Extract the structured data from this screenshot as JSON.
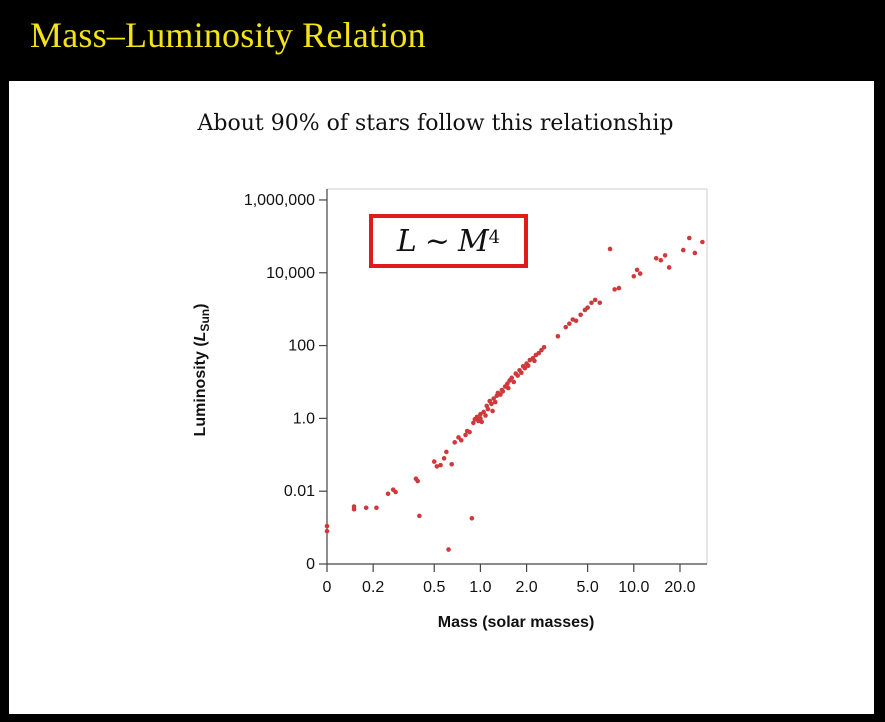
{
  "slide": {
    "title": "Mass–Luminosity Relation",
    "subtitle": "About 90% of stars follow this relationship",
    "formula": {
      "lhs": "L",
      "op": "~",
      "rhs": "M",
      "exp": "4"
    }
  },
  "chart_data": {
    "type": "scatter",
    "xlabel": "Mass (solar masses)",
    "ylabel_main": "Luminosity (",
    "ylabel_symbol": "L",
    "ylabel_sub": "Sun",
    "ylabel_end": ")",
    "xscale": "log",
    "yscale": "log",
    "xlim": [
      0.1,
      30
    ],
    "ylim": [
      0.0001,
      2000000
    ],
    "x_ticks": [
      {
        "value": 0.1,
        "label": "0"
      },
      {
        "value": 0.2,
        "label": "0.2"
      },
      {
        "value": 0.5,
        "label": "0.5"
      },
      {
        "value": 1.0,
        "label": "1.0"
      },
      {
        "value": 2.0,
        "label": "2.0"
      },
      {
        "value": 5.0,
        "label": "5.0"
      },
      {
        "value": 10.0,
        "label": "10.0"
      },
      {
        "value": 20.0,
        "label": "20.0"
      }
    ],
    "y_ticks": [
      {
        "value": 0.0001,
        "label": "0"
      },
      {
        "value": 0.01,
        "label": "0.01"
      },
      {
        "value": 1,
        "label": "1.0"
      },
      {
        "value": 100,
        "label": "100"
      },
      {
        "value": 10000,
        "label": "10,000"
      },
      {
        "value": 1000000,
        "label": "1,000,000"
      }
    ],
    "grid": false,
    "point_color": "#d0393b",
    "points": [
      [
        0.1,
        0.0008
      ],
      [
        0.1,
        0.0011
      ],
      [
        0.15,
        0.0032
      ],
      [
        0.15,
        0.0038
      ],
      [
        0.18,
        0.0035
      ],
      [
        0.21,
        0.0035
      ],
      [
        0.25,
        0.0085
      ],
      [
        0.27,
        0.011
      ],
      [
        0.28,
        0.0095
      ],
      [
        0.38,
        0.022
      ],
      [
        0.39,
        0.019
      ],
      [
        0.4,
        0.0021
      ],
      [
        0.5,
        0.065
      ],
      [
        0.52,
        0.048
      ],
      [
        0.55,
        0.052
      ],
      [
        0.58,
        0.08
      ],
      [
        0.6,
        0.12
      ],
      [
        0.62,
        0.00025
      ],
      [
        0.65,
        0.055
      ],
      [
        0.68,
        0.22
      ],
      [
        0.72,
        0.3
      ],
      [
        0.75,
        0.25
      ],
      [
        0.8,
        0.35
      ],
      [
        0.82,
        0.45
      ],
      [
        0.85,
        0.42
      ],
      [
        0.88,
        0.0018
      ],
      [
        0.9,
        0.75
      ],
      [
        0.92,
        0.95
      ],
      [
        0.95,
        1.1
      ],
      [
        0.97,
        0.85
      ],
      [
        1.0,
        1.0
      ],
      [
        1.0,
        1.3
      ],
      [
        1.02,
        0.8
      ],
      [
        1.05,
        1.5
      ],
      [
        1.08,
        1.2
      ],
      [
        1.1,
        2.2
      ],
      [
        1.12,
        1.8
      ],
      [
        1.15,
        3.0
      ],
      [
        1.18,
        2.5
      ],
      [
        1.2,
        1.6
      ],
      [
        1.22,
        3.5
      ],
      [
        1.25,
        2.8
      ],
      [
        1.28,
        4.2
      ],
      [
        1.3,
        5.0
      ],
      [
        1.35,
        4.5
      ],
      [
        1.38,
        6.0
      ],
      [
        1.4,
        5.5
      ],
      [
        1.45,
        7.5
      ],
      [
        1.5,
        9.0
      ],
      [
        1.52,
        6.8
      ],
      [
        1.55,
        11
      ],
      [
        1.6,
        13
      ],
      [
        1.65,
        10
      ],
      [
        1.7,
        17
      ],
      [
        1.75,
        15
      ],
      [
        1.8,
        21
      ],
      [
        1.85,
        18
      ],
      [
        1.9,
        27
      ],
      [
        1.95,
        24
      ],
      [
        2.0,
        32
      ],
      [
        2.05,
        28
      ],
      [
        2.1,
        40
      ],
      [
        2.2,
        45
      ],
      [
        2.25,
        38
      ],
      [
        2.3,
        55
      ],
      [
        2.4,
        62
      ],
      [
        2.5,
        75
      ],
      [
        2.6,
        90
      ],
      [
        3.2,
        180
      ],
      [
        3.6,
        320
      ],
      [
        3.8,
        400
      ],
      [
        4.0,
        520
      ],
      [
        4.2,
        480
      ],
      [
        4.5,
        700
      ],
      [
        4.8,
        950
      ],
      [
        5.0,
        1100
      ],
      [
        5.3,
        1500
      ],
      [
        5.6,
        1800
      ],
      [
        6.0,
        1500
      ],
      [
        7.0,
        45000
      ],
      [
        7.5,
        3500
      ],
      [
        8.0,
        3800
      ],
      [
        10.0,
        8000
      ],
      [
        10.5,
        12000
      ],
      [
        11.0,
        9500
      ],
      [
        14.0,
        25000
      ],
      [
        15.0,
        22000
      ],
      [
        16.0,
        30000
      ],
      [
        17.0,
        14000
      ],
      [
        21.0,
        42000
      ],
      [
        25.0,
        35000
      ],
      [
        23.0,
        90000
      ],
      [
        28.0,
        70000
      ]
    ]
  },
  "colors": {
    "title": "#f4e411",
    "box_border": "#e01b1b",
    "background": "#000000",
    "panel": "#ffffff"
  }
}
